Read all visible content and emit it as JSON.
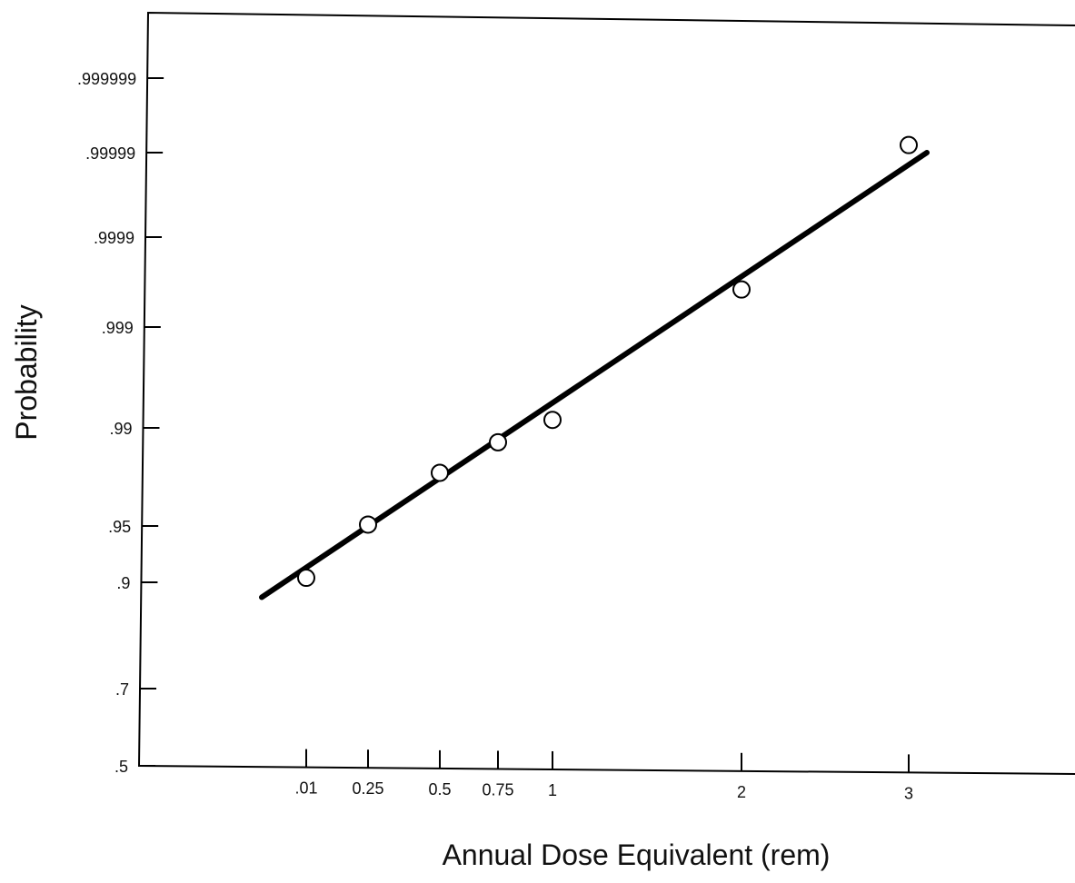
{
  "chart_data": {
    "type": "scatter",
    "title": "",
    "xlabel": "Annual Dose Equivalent (rem)",
    "ylabel": "Probability",
    "y_scale": "probability",
    "x_ticks": [
      {
        "value": 0.01,
        "label": ".01"
      },
      {
        "value": 0.25,
        "label": "0.25"
      },
      {
        "value": 0.5,
        "label": "0.5"
      },
      {
        "value": 0.75,
        "label": "0.75"
      },
      {
        "value": 1,
        "label": "1"
      },
      {
        "value": 2,
        "label": "2"
      },
      {
        "value": 3,
        "label": "3"
      }
    ],
    "y_ticks": [
      {
        "value": 0.5,
        "label": ".5"
      },
      {
        "value": 0.7,
        "label": ".7"
      },
      {
        "value": 0.9,
        "label": ".9"
      },
      {
        "value": 0.95,
        "label": ".95"
      },
      {
        "value": 0.99,
        "label": ".99"
      },
      {
        "value": 0.999,
        "label": ".999"
      },
      {
        "value": 0.9999,
        "label": ".9999"
      },
      {
        "value": 0.99999,
        "label": ".99999"
      },
      {
        "value": 0.999999,
        "label": ".999999"
      }
    ],
    "points": [
      {
        "x": 0.01,
        "y": 0.905
      },
      {
        "x": 0.25,
        "y": 0.951
      },
      {
        "x": 0.5,
        "y": 0.978
      },
      {
        "x": 0.75,
        "y": 0.987
      },
      {
        "x": 1,
        "y": 0.9915
      },
      {
        "x": 2,
        "y": 0.9996
      },
      {
        "x": 3,
        "y": 0.999992
      }
    ],
    "fit_line": [
      {
        "x": -0.2,
        "y": 0.88
      },
      {
        "x": 3.1,
        "y": 0.99999
      }
    ]
  }
}
